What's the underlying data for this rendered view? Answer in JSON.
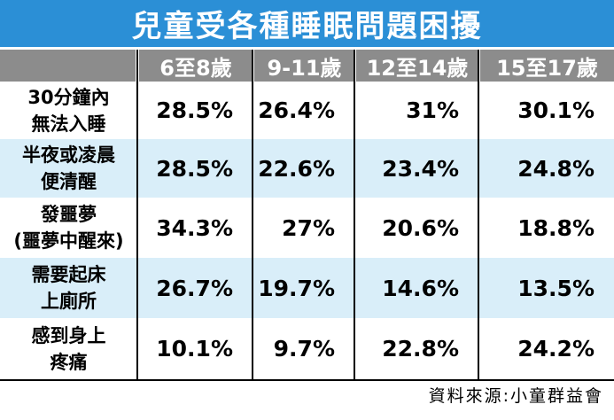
{
  "header": {
    "title": "兒童受各種睡眠問題困擾"
  },
  "table": {
    "columns": [
      "6至8歲",
      "9-11歲",
      "12至14歲",
      "15至17歲"
    ],
    "rows": [
      {
        "label": [
          "30分鐘內",
          "無法入睡"
        ],
        "cells": [
          "28.5%",
          "26.4%",
          "31%",
          "30.1%"
        ]
      },
      {
        "label": [
          "半夜或凌晨",
          "便清醒"
        ],
        "cells": [
          "28.5%",
          "22.6%",
          "23.4%",
          "24.8%"
        ]
      },
      {
        "label": [
          "發噩夢",
          "(噩夢中醒來)"
        ],
        "cells": [
          "34.3%",
          "27%",
          "20.6%",
          "18.8%"
        ]
      },
      {
        "label": [
          "需要起床",
          "上廁所"
        ],
        "cells": [
          "26.7%",
          "19.7%",
          "14.6%",
          "13.5%"
        ]
      },
      {
        "label": [
          "感到身上",
          "疼痛"
        ],
        "cells": [
          "10.1%",
          "9.7%",
          "22.8%",
          "24.2%"
        ]
      }
    ]
  },
  "footer": {
    "source": "資料來源:小童群益會"
  }
}
